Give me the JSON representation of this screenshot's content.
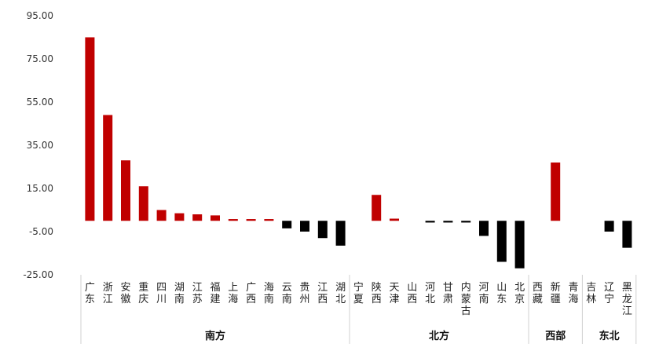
{
  "chart_data": {
    "type": "bar",
    "categories": [
      "广东",
      "浙江",
      "安徽",
      "重庆",
      "四川",
      "湖南",
      "江苏",
      "福建",
      "上海",
      "广西",
      "海南",
      "云南",
      "贵州",
      "江西",
      "湖北",
      "宁夏",
      "陕西",
      "天津",
      "山西",
      "河北",
      "甘肃",
      "内蒙古",
      "河南",
      "山东",
      "北京",
      "西藏",
      "新疆",
      "青海",
      "吉林",
      "辽宁",
      "黑龙江"
    ],
    "values": [
      85,
      49,
      28,
      16,
      5,
      3.5,
      3,
      2.5,
      0.8,
      0.8,
      0.8,
      -3.5,
      -5,
      -8,
      -11.5,
      0,
      12,
      1,
      0,
      -0.8,
      -0.8,
      -0.8,
      -7,
      -19,
      -22,
      0,
      27,
      0,
      0,
      -5,
      -12.5
    ],
    "ylim": [
      -25,
      95
    ],
    "yticks": [
      "95.00",
      "75.00",
      "55.00",
      "35.00",
      "15.00",
      "-5.00",
      "-25.00"
    ],
    "ytick_values": [
      95,
      75,
      55,
      35,
      15,
      -5,
      -25
    ],
    "groups": [
      {
        "name": "南方",
        "start": 0,
        "end": 14
      },
      {
        "name": "北方",
        "start": 15,
        "end": 24
      },
      {
        "name": "西部",
        "start": 25,
        "end": 27
      },
      {
        "name": "东北",
        "start": 28,
        "end": 30
      }
    ],
    "grid": false,
    "positive_color": "#C00000",
    "negative_color": "#000000"
  }
}
